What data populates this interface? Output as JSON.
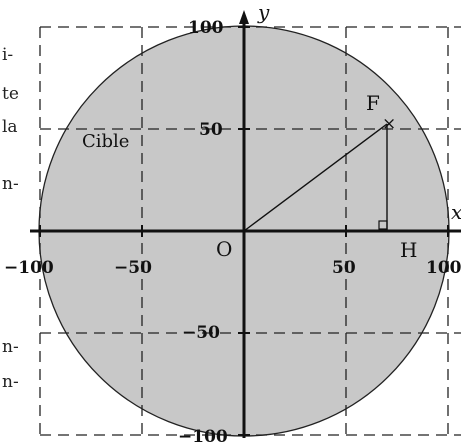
{
  "axis": {
    "y_label": "y",
    "x_label": "x",
    "x_ticks": [
      "−100",
      "−50",
      "50",
      "100"
    ],
    "y_ticks": [
      "100",
      "50",
      "−50",
      "−100"
    ]
  },
  "points": {
    "origin": "O",
    "f": "F",
    "h": "H",
    "f_marker": "×"
  },
  "cible_label": "Cible",
  "cut_text_fragments": [
    "i-",
    "te",
    "la",
    "n-",
    "n-",
    "n-"
  ],
  "colors": {
    "disk_fill": "#c8c8c8",
    "lines": "#111111"
  },
  "diagram_data": {
    "circle_radius": 100,
    "point_f": [
      70,
      52
    ],
    "point_h": [
      70,
      0
    ],
    "x_range": [
      -100,
      100
    ],
    "y_range": [
      -100,
      100
    ]
  }
}
